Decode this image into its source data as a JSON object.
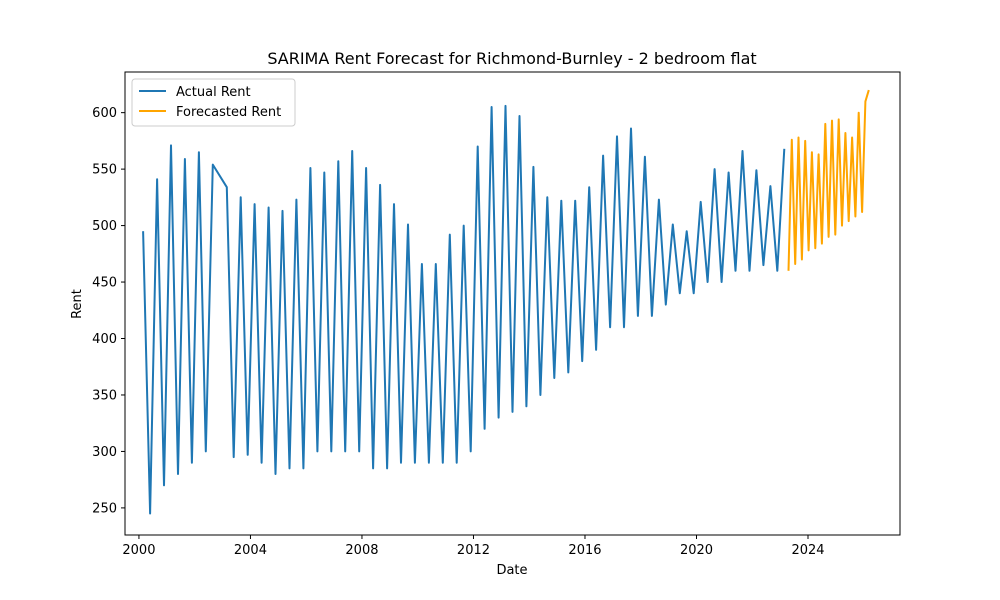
{
  "chart_data": {
    "type": "line",
    "title": "SARIMA Rent Forecast for Richmond-Burnley - 2 bedroom flat",
    "xlabel": "Date",
    "ylabel": "Rent",
    "xlim": [
      1999.5,
      2027.3
    ],
    "ylim": [
      226,
      636
    ],
    "xticks": [
      2000,
      2004,
      2008,
      2012,
      2016,
      2020,
      2024
    ],
    "yticks": [
      250,
      300,
      350,
      400,
      450,
      500,
      550,
      600
    ],
    "grid": false,
    "legend_position": "top-left",
    "series": [
      {
        "name": "Actual Rent",
        "color": "#1f77b4",
        "x": [
          2000.15,
          2000.4,
          2000.65,
          2000.9,
          2001.15,
          2001.4,
          2001.65,
          2001.9,
          2002.15,
          2002.4,
          2002.65,
          2003.15,
          2003.4,
          2003.65,
          2003.9,
          2004.15,
          2004.4,
          2004.65,
          2004.9,
          2005.15,
          2005.4,
          2005.65,
          2005.9,
          2006.15,
          2006.4,
          2006.65,
          2006.9,
          2007.15,
          2007.4,
          2007.65,
          2007.9,
          2008.15,
          2008.4,
          2008.65,
          2008.9,
          2009.15,
          2009.4,
          2009.65,
          2009.9,
          2010.15,
          2010.4,
          2010.65,
          2010.9,
          2011.15,
          2011.4,
          2011.65,
          2011.9,
          2012.15,
          2012.4,
          2012.65,
          2012.9,
          2013.15,
          2013.4,
          2013.65,
          2013.9,
          2014.15,
          2014.4,
          2014.65,
          2014.9,
          2015.15,
          2015.4,
          2015.65,
          2015.9,
          2016.15,
          2016.4,
          2016.65,
          2016.9,
          2017.15,
          2017.4,
          2017.65,
          2017.9,
          2018.15,
          2018.4,
          2018.65,
          2018.9,
          2019.15,
          2019.4,
          2019.65,
          2019.9,
          2020.15,
          2020.4,
          2020.65,
          2020.9,
          2021.15,
          2021.4,
          2021.65,
          2021.9,
          2022.15,
          2022.4,
          2022.65,
          2022.9,
          2023.15
        ],
        "y": [
          495,
          245,
          541,
          270,
          571,
          280,
          559,
          290,
          565,
          300,
          554,
          534,
          295,
          525,
          297,
          519,
          290,
          516,
          280,
          513,
          285,
          523,
          285,
          551,
          300,
          547,
          300,
          557,
          300,
          566,
          300,
          551,
          285,
          536,
          285,
          519,
          290,
          501,
          290,
          466,
          290,
          466,
          290,
          492,
          290,
          500,
          300,
          570,
          320,
          605,
          330,
          606,
          335,
          597,
          340,
          552,
          350,
          525,
          365,
          522,
          370,
          522,
          380,
          534,
          390,
          562,
          410,
          579,
          410,
          586,
          420,
          561,
          420,
          523,
          430,
          501,
          440,
          495,
          440,
          521,
          450,
          550,
          450,
          547,
          460,
          566,
          460,
          549,
          465,
          535,
          460,
          568
        ]
      },
      {
        "name": "Forecasted Rent",
        "color": "#ffa500",
        "x": [
          2023.3,
          2023.42,
          2023.54,
          2023.66,
          2023.78,
          2023.9,
          2024.02,
          2024.14,
          2024.26,
          2024.38,
          2024.5,
          2024.62,
          2024.74,
          2024.86,
          2024.98,
          2025.1,
          2025.22,
          2025.34,
          2025.46,
          2025.58,
          2025.7,
          2025.82,
          2025.94,
          2026.06,
          2026.18
        ],
        "y": [
          460,
          576,
          466,
          578,
          470,
          575,
          478,
          565,
          480,
          563,
          484,
          590,
          490,
          593,
          492,
          594,
          500,
          582,
          504,
          578,
          508,
          600,
          512,
          610,
          620
        ]
      }
    ]
  }
}
